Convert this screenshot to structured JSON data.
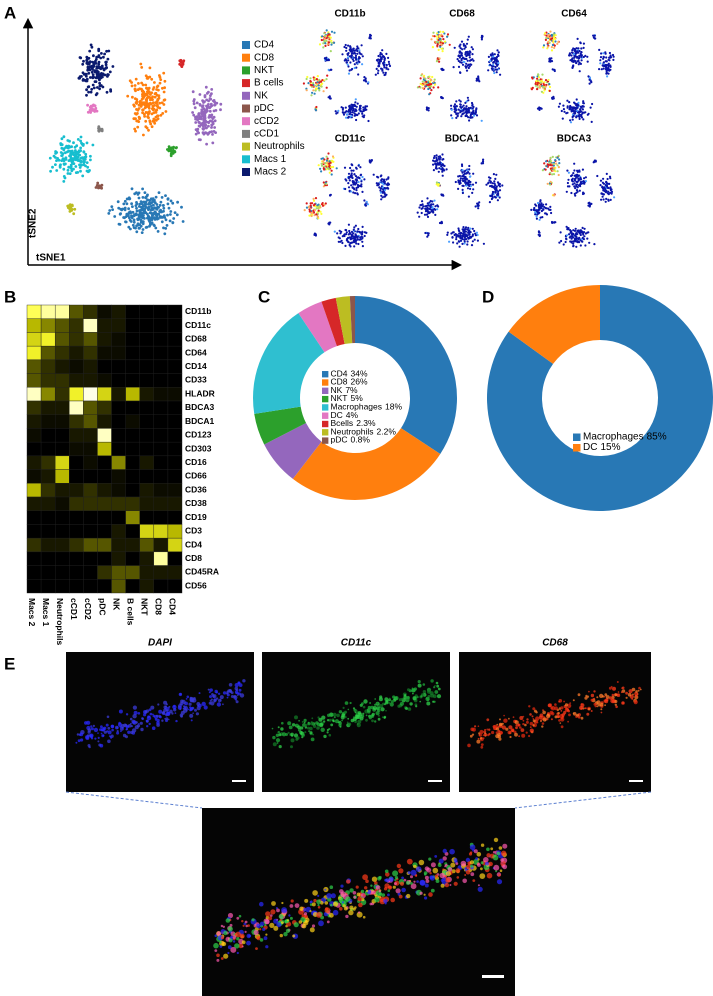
{
  "panel_a": {
    "label": "A",
    "x_label": "tSNE1",
    "y_label": "tSNE2",
    "populations": [
      {
        "name": "CD4",
        "color": "#2878b5"
      },
      {
        "name": "CD8",
        "color": "#ff7f0e"
      },
      {
        "name": "NKT",
        "color": "#2ca02c"
      },
      {
        "name": "B cells",
        "color": "#d62728"
      },
      {
        "name": "NK",
        "color": "#9467bd"
      },
      {
        "name": "pDC",
        "color": "#8c564b"
      },
      {
        "name": "cCD2",
        "color": "#e377c2"
      },
      {
        "name": "cCD1",
        "color": "#7f7f7f"
      },
      {
        "name": "Neutrophils",
        "color": "#bcbd22"
      },
      {
        "name": "Macs 1",
        "color": "#17becf"
      },
      {
        "name": "Macs 2",
        "color": "#0b1a6e"
      }
    ],
    "markers": [
      "CD11b",
      "CD68",
      "CD64",
      "CD11c",
      "BDCA1",
      "BDCA3"
    ]
  },
  "panel_b": {
    "label": "B",
    "type": "heatmap",
    "rows": [
      "CD11b",
      "CD11c",
      "CD68",
      "CD64",
      "CD14",
      "CD33",
      "HLADR",
      "BDCA3",
      "BDCA1",
      "CD123",
      "CD303",
      "CD16",
      "CD66",
      "CD36",
      "CD38",
      "CD19",
      "CD3",
      "CD4",
      "CD8",
      "CD45RA",
      "CD56"
    ],
    "columns": [
      "Macs 2",
      "Macs 1",
      "Neutrophils",
      "cCD1",
      "cCD2",
      "pDC",
      "NK",
      "B cells",
      "NKT",
      "CD8",
      "CD4"
    ],
    "values": [
      [
        0.8,
        0.9,
        0.9,
        0.3,
        0.2,
        0.05,
        0.1,
        0,
        0,
        0,
        0
      ],
      [
        0.5,
        0.4,
        0.3,
        0.2,
        0.95,
        0.1,
        0.1,
        0,
        0,
        0,
        0
      ],
      [
        0.6,
        0.7,
        0.3,
        0.2,
        0.3,
        0.1,
        0.05,
        0,
        0,
        0,
        0
      ],
      [
        0.7,
        0.3,
        0.2,
        0.1,
        0.2,
        0.05,
        0.05,
        0,
        0,
        0,
        0
      ],
      [
        0.3,
        0.2,
        0.1,
        0.05,
        0.1,
        0,
        0,
        0,
        0,
        0,
        0
      ],
      [
        0.3,
        0.2,
        0.2,
        0.1,
        0.1,
        0.05,
        0,
        0,
        0,
        0,
        0
      ],
      [
        0.95,
        0.4,
        0.2,
        0.7,
        1,
        0.6,
        0.1,
        0.5,
        0.1,
        0.05,
        0.05
      ],
      [
        0.2,
        0.1,
        0.1,
        0.95,
        0.3,
        0.2,
        0,
        0,
        0,
        0,
        0
      ],
      [
        0.1,
        0.05,
        0.05,
        0.2,
        0.3,
        0.1,
        0,
        0.05,
        0,
        0,
        0
      ],
      [
        0.05,
        0,
        0,
        0.1,
        0.1,
        0.95,
        0,
        0,
        0,
        0,
        0
      ],
      [
        0,
        0,
        0,
        0.05,
        0.05,
        0.5,
        0,
        0,
        0,
        0,
        0
      ],
      [
        0.1,
        0.2,
        0.6,
        0,
        0.05,
        0,
        0.4,
        0,
        0.1,
        0,
        0
      ],
      [
        0.05,
        0.1,
        0.5,
        0,
        0,
        0,
        0.05,
        0,
        0,
        0,
        0
      ],
      [
        0.5,
        0.2,
        0.1,
        0.1,
        0.2,
        0.1,
        0.05,
        0,
        0.1,
        0.05,
        0.05
      ],
      [
        0.1,
        0.1,
        0.05,
        0.2,
        0.2,
        0.2,
        0.2,
        0.2,
        0.1,
        0.1,
        0.1
      ],
      [
        0,
        0,
        0,
        0,
        0,
        0,
        0,
        0.4,
        0,
        0,
        0
      ],
      [
        0,
        0,
        0,
        0,
        0,
        0,
        0.1,
        0,
        0.6,
        0.6,
        0.5
      ],
      [
        0.2,
        0.1,
        0.1,
        0.2,
        0.3,
        0.3,
        0.1,
        0.1,
        0.3,
        0.1,
        0.6
      ],
      [
        0,
        0,
        0,
        0,
        0,
        0,
        0.1,
        0,
        0.1,
        0.9,
        0
      ],
      [
        0,
        0,
        0,
        0,
        0,
        0.2,
        0.3,
        0.3,
        0.1,
        0.1,
        0.1
      ],
      [
        0,
        0,
        0,
        0,
        0,
        0,
        0.3,
        0,
        0.1,
        0,
        0
      ]
    ],
    "colormap": [
      "#000000",
      "#3d3d00",
      "#b8b800",
      "#ffff33",
      "#ffffe6"
    ]
  },
  "panel_c": {
    "label": "C",
    "type": "pie",
    "categories": [
      "CD4",
      "CD8",
      "NK",
      "NKT",
      "Macrophages",
      "DC",
      "Bcells",
      "Neutrophils",
      "pDC"
    ],
    "values": [
      34,
      26,
      7,
      5,
      18,
      4,
      2.3,
      2.2,
      0.8
    ],
    "value_labels": [
      "34%",
      "26%",
      "7%",
      "5%",
      "18%",
      "4%",
      "2.3%",
      "2.2%",
      "0.8%"
    ],
    "colors": [
      "#2878b5",
      "#ff7f0e",
      "#9467bd",
      "#2ca02c",
      "#2fbfd0",
      "#e377c2",
      "#d62728",
      "#bcbd22",
      "#8c564b"
    ]
  },
  "panel_d": {
    "label": "D",
    "type": "pie",
    "categories": [
      "Macrophages",
      "DC"
    ],
    "values": [
      85,
      15
    ],
    "value_labels": [
      "85%",
      "15%"
    ],
    "colors": [
      "#2878b5",
      "#ff7f0e"
    ]
  },
  "panel_e": {
    "label": "E",
    "images": [
      "DAPI",
      "CD11c",
      "CD68"
    ]
  }
}
